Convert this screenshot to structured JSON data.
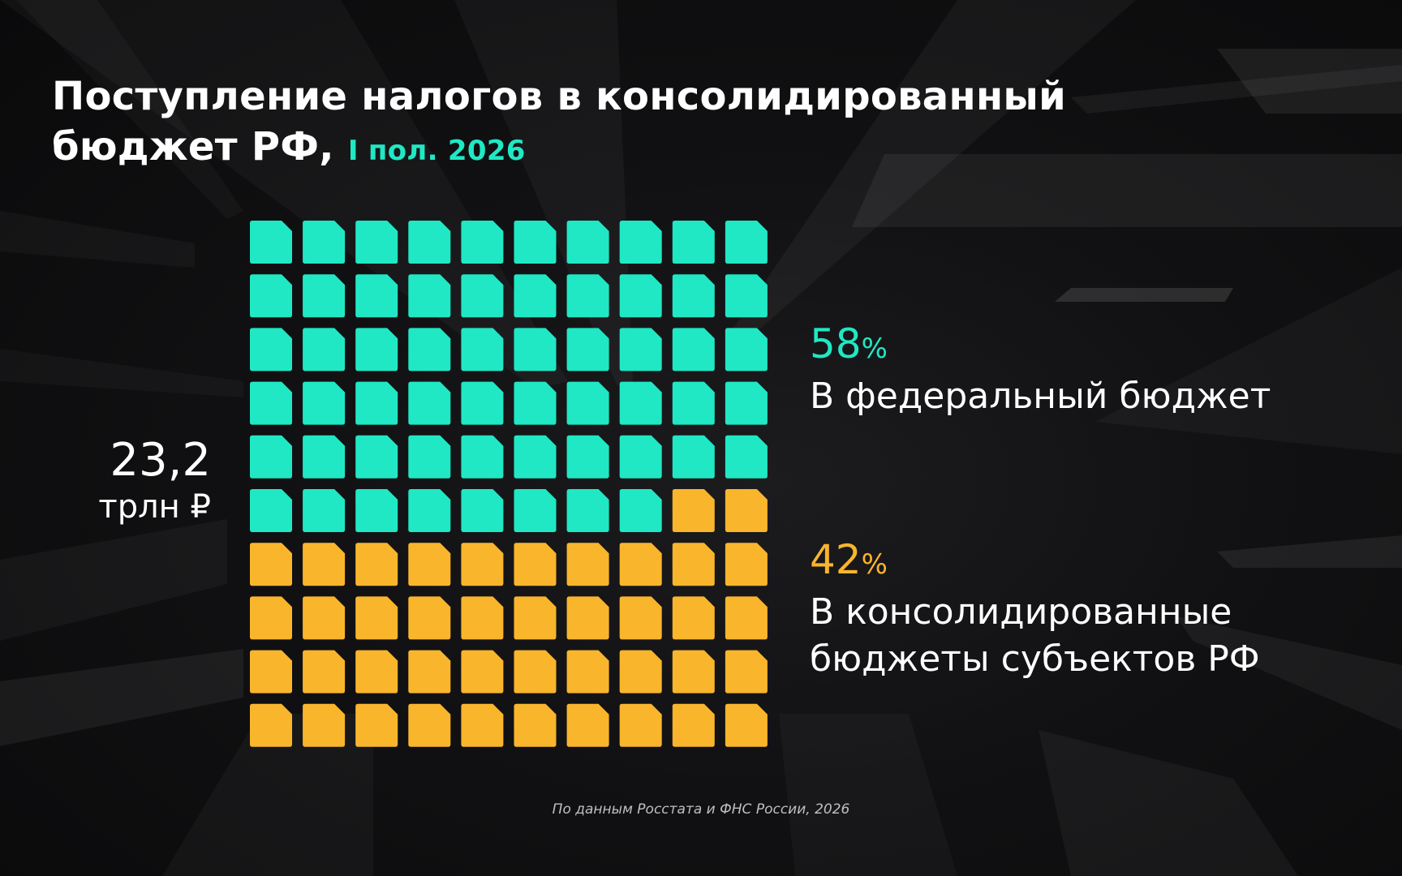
{
  "title_line1": "Поступление налогов в консолидированный",
  "title_line2": "бюджет РФ,",
  "title_period": "I пол. 2026",
  "total": {
    "value": "23,2",
    "unit": "трлн ₽"
  },
  "legend": [
    {
      "percent": "58",
      "percent_sign": "%",
      "label_lines": [
        "В федеральный бюджет"
      ]
    },
    {
      "percent": "42",
      "percent_sign": "%",
      "label_lines": [
        "В консолидированные",
        "бюджеты субъектов РФ"
      ]
    }
  ],
  "source": "По данным Росстата и ФНС России, 2026",
  "colors": {
    "federal": "#20e8c4",
    "regional": "#f9b52c",
    "background": "#111113"
  },
  "chart_data": {
    "type": "waffle",
    "total_cells": 100,
    "grid": {
      "rows": 10,
      "columns": 10
    },
    "total_value": 23.2,
    "total_unit": "трлн ₽",
    "series": [
      {
        "name": "В федеральный бюджет",
        "percent": 58,
        "color": "#20e8c4"
      },
      {
        "name": "В консолидированные бюджеты субъектов РФ",
        "percent": 42,
        "color": "#f9b52c"
      }
    ]
  }
}
